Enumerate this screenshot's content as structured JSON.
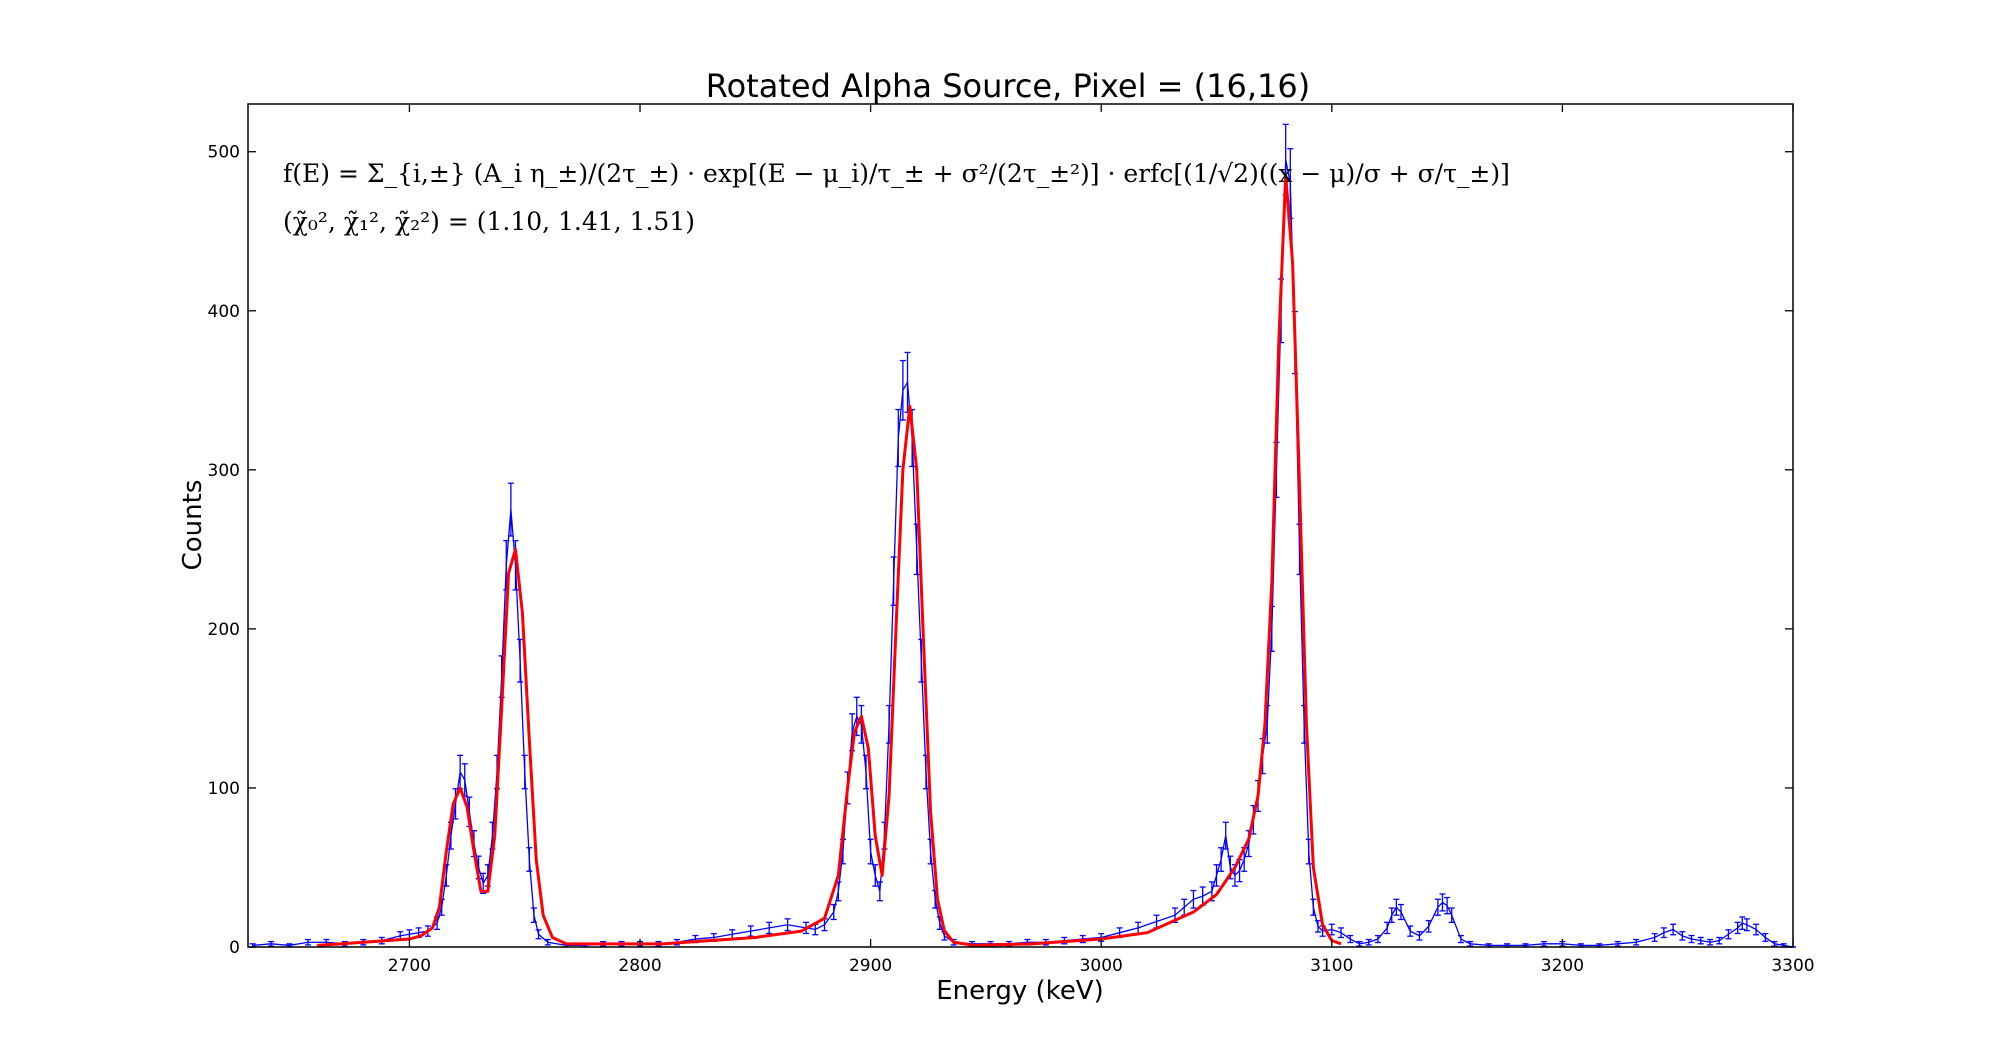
{
  "chart_data": {
    "type": "line",
    "title": "Rotated Alpha Source, Pixel = (16,16)",
    "xlabel": "Energy (keV)",
    "ylabel": "Counts",
    "xlim": [
      2630,
      3300
    ],
    "ylim": [
      0,
      530
    ],
    "xticks": [
      2700,
      2800,
      2900,
      3000,
      3100,
      3200,
      3300
    ],
    "yticks": [
      0,
      100,
      200,
      300,
      400,
      500
    ],
    "grid": false,
    "annotations": [
      "f(E) = Σ_{i,±} (A_i η_±)/(2τ_±) · exp[(E − μ_i)/τ_± + σ²/(2τ_±²)] · erfc[(1/√2)((x − μ)/σ + σ/τ_±)]",
      "(χ̃₀², χ̃₁², χ̃₂²) = (1.10, 1.41, 1.51)"
    ],
    "series": [
      {
        "style": "errorbar",
        "color": "#0000ff",
        "x": [
          2632,
          2640,
          2648,
          2656,
          2664,
          2672,
          2680,
          2688,
          2696,
          2700,
          2704,
          2708,
          2712,
          2714,
          2716,
          2718,
          2720,
          2722,
          2724,
          2726,
          2728,
          2730,
          2732,
          2734,
          2736,
          2738,
          2740,
          2742,
          2744,
          2746,
          2748,
          2750,
          2752,
          2754,
          2756,
          2760,
          2768,
          2776,
          2784,
          2792,
          2800,
          2808,
          2816,
          2824,
          2832,
          2840,
          2848,
          2856,
          2864,
          2872,
          2876,
          2880,
          2884,
          2886,
          2888,
          2890,
          2892,
          2894,
          2896,
          2898,
          2900,
          2902,
          2904,
          2906,
          2908,
          2910,
          2912,
          2914,
          2916,
          2918,
          2920,
          2922,
          2924,
          2926,
          2928,
          2930,
          2932,
          2936,
          2944,
          2952,
          2960,
          2968,
          2976,
          2984,
          2992,
          3000,
          3008,
          3016,
          3024,
          3032,
          3036,
          3040,
          3044,
          3048,
          3050,
          3052,
          3054,
          3056,
          3058,
          3060,
          3062,
          3064,
          3066,
          3068,
          3070,
          3072,
          3074,
          3076,
          3078,
          3080,
          3082,
          3084,
          3086,
          3088,
          3090,
          3092,
          3094,
          3096,
          3100,
          3104,
          3108,
          3112,
          3116,
          3120,
          3124,
          3126,
          3128,
          3130,
          3134,
          3138,
          3142,
          3146,
          3148,
          3150,
          3152,
          3156,
          3160,
          3168,
          3176,
          3184,
          3192,
          3200,
          3208,
          3216,
          3224,
          3232,
          3240,
          3244,
          3248,
          3252,
          3256,
          3260,
          3264,
          3268,
          3272,
          3276,
          3278,
          3280,
          3284,
          3288,
          3292,
          3296,
          3300
        ],
        "y": [
          1,
          2,
          1,
          3,
          3,
          2,
          3,
          4,
          7,
          8,
          9,
          10,
          15,
          25,
          45,
          70,
          90,
          110,
          105,
          85,
          65,
          50,
          40,
          45,
          70,
          110,
          170,
          240,
          275,
          240,
          180,
          110,
          55,
          20,
          8,
          3,
          1,
          1,
          2,
          2,
          2,
          2,
          3,
          5,
          6,
          8,
          10,
          12,
          14,
          12,
          11,
          14,
          22,
          35,
          60,
          100,
          135,
          145,
          140,
          110,
          60,
          45,
          35,
          70,
          140,
          230,
          320,
          350,
          355,
          320,
          250,
          180,
          110,
          60,
          30,
          15,
          7,
          3,
          2,
          2,
          2,
          3,
          3,
          4,
          5,
          6,
          9,
          12,
          16,
          20,
          25,
          30,
          32,
          35,
          45,
          55,
          70,
          50,
          45,
          48,
          55,
          65,
          80,
          95,
          120,
          140,
          200,
          300,
          400,
          495,
          480,
          380,
          250,
          140,
          60,
          25,
          13,
          10,
          11,
          9,
          5,
          2,
          3,
          5,
          12,
          20,
          25,
          22,
          10,
          7,
          13,
          25,
          28,
          26,
          20,
          5,
          2,
          1,
          1,
          1,
          2,
          2,
          1,
          1,
          2,
          3,
          6,
          9,
          11,
          7,
          5,
          4,
          3,
          4,
          8,
          12,
          15,
          14,
          11,
          6,
          2,
          1,
          0
        ],
        "yerr": [
          1,
          1.4,
          1,
          1.7,
          1.7,
          1.4,
          1.7,
          2,
          2.6,
          2.8,
          3,
          3.2,
          3.9,
          5,
          6.7,
          8.4,
          9.5,
          10.5,
          10.2,
          9.2,
          8.1,
          7.1,
          6.3,
          6.7,
          8.4,
          10.5,
          13,
          15.5,
          16.6,
          15.5,
          13.4,
          10.5,
          7.4,
          4.5,
          2.8,
          1.7,
          1,
          1,
          1.4,
          1.4,
          1.4,
          1.4,
          1.7,
          2.2,
          2.4,
          2.8,
          3.2,
          3.5,
          3.7,
          3.5,
          3.3,
          3.7,
          4.7,
          5.9,
          7.7,
          10,
          11.6,
          12,
          11.8,
          10.5,
          7.7,
          6.7,
          5.9,
          8.4,
          11.8,
          15.2,
          17.9,
          18.7,
          18.8,
          17.9,
          15.8,
          13.4,
          10.5,
          7.7,
          5.5,
          3.9,
          2.6,
          1.7,
          1.4,
          1.4,
          1.4,
          1.7,
          1.7,
          2,
          2.2,
          2.4,
          3,
          3.5,
          4,
          4.5,
          5,
          5.5,
          5.7,
          5.9,
          6.7,
          7.4,
          8.4,
          7.1,
          6.7,
          6.9,
          7.4,
          8.1,
          8.9,
          9.7,
          11,
          11.8,
          14.1,
          17.3,
          20,
          22.2,
          21.9,
          19.5,
          15.8,
          11.8,
          7.7,
          5,
          3.6,
          3.2,
          3.3,
          3,
          2.2,
          1.4,
          1.7,
          2.2,
          3.5,
          4.5,
          5,
          4.7,
          3.2,
          2.6,
          3.6,
          5,
          5.3,
          5.1,
          4.5,
          2.2,
          1.4,
          1,
          1,
          1,
          1.4,
          1.4,
          1,
          1,
          1.4,
          1.7,
          2.4,
          3,
          3.3,
          2.6,
          2.2,
          2,
          1.7,
          2,
          2.8,
          3.5,
          3.9,
          3.7,
          3.3,
          2.4,
          1.4,
          1,
          0
        ]
      },
      {
        "style": "line",
        "color": "#ff0000",
        "x": [
          2660,
          2670,
          2680,
          2690,
          2700,
          2705,
          2710,
          2713,
          2716,
          2719,
          2722,
          2725,
          2728,
          2731,
          2734,
          2737,
          2740,
          2743,
          2746,
          2749,
          2752,
          2755,
          2758,
          2762,
          2768,
          2810,
          2830,
          2850,
          2870,
          2880,
          2886,
          2890,
          2893,
          2896,
          2899,
          2902,
          2905,
          2908,
          2911,
          2914,
          2917,
          2920,
          2923,
          2926,
          2929,
          2932,
          2936,
          2945,
          2970,
          3000,
          3020,
          3040,
          3050,
          3058,
          3064,
          3068,
          3071,
          3074,
          3077,
          3080,
          3083,
          3086,
          3089,
          3092,
          3096,
          3100,
          3104
        ],
        "y": [
          1,
          2,
          3,
          4,
          5,
          7,
          12,
          25,
          60,
          90,
          100,
          88,
          60,
          35,
          35,
          70,
          150,
          235,
          250,
          210,
          130,
          55,
          20,
          6,
          2,
          2,
          4,
          6,
          10,
          18,
          45,
          100,
          135,
          145,
          125,
          70,
          45,
          95,
          200,
          300,
          340,
          300,
          190,
          85,
          30,
          10,
          3,
          1,
          2,
          5,
          9,
          22,
          33,
          50,
          68,
          95,
          140,
          230,
          380,
          485,
          430,
          290,
          140,
          50,
          14,
          4,
          2
        ]
      }
    ]
  }
}
